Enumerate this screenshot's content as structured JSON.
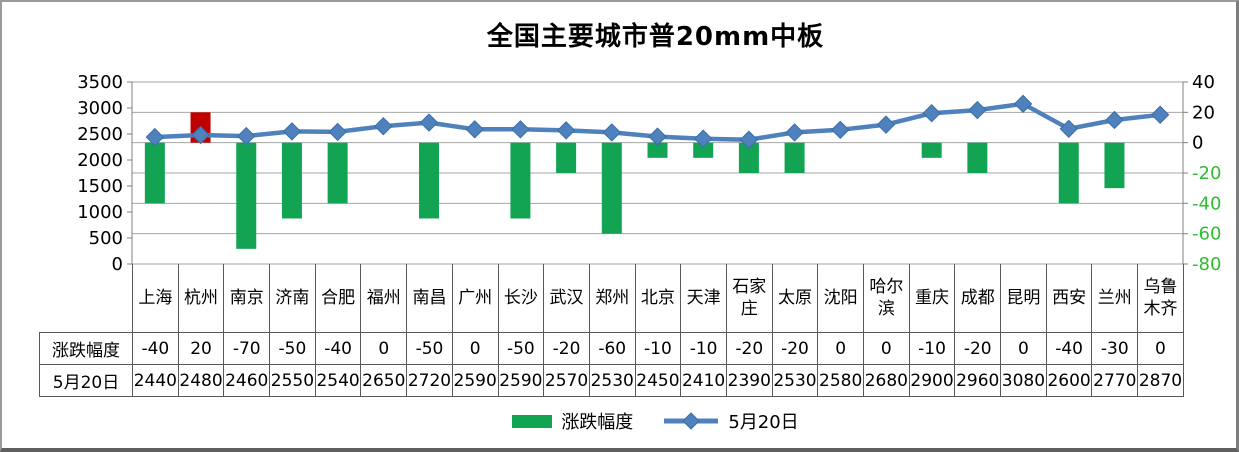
{
  "chart_data": {
    "type": "combo",
    "title": "全国主要城市普20mm中板",
    "categories": [
      "上海",
      "杭州",
      "南京",
      "济南",
      "合肥",
      "福州",
      "南昌",
      "广州",
      "长沙",
      "武汉",
      "郑州",
      "北京",
      "天津",
      "石家庄",
      "太原",
      "沈阳",
      "哈尔滨",
      "重庆",
      "成都",
      "昆明",
      "西安",
      "兰州",
      "乌鲁木齐"
    ],
    "series": [
      {
        "name": "涨跌幅度",
        "type": "bar",
        "axis": "right",
        "color": "#13A453",
        "positive_color": "#C00000",
        "values": [
          -40,
          20,
          -70,
          -50,
          -40,
          0,
          -50,
          0,
          -50,
          -20,
          -60,
          -10,
          -10,
          -20,
          -20,
          0,
          0,
          -10,
          -20,
          0,
          -40,
          -30,
          0
        ]
      },
      {
        "name": "5月20日",
        "type": "line",
        "axis": "left",
        "color": "#4F81BD",
        "marker": "diamond",
        "marker_edge": "#3A6EA5",
        "values": [
          2440,
          2480,
          2460,
          2550,
          2540,
          2650,
          2720,
          2590,
          2590,
          2570,
          2530,
          2450,
          2410,
          2390,
          2530,
          2580,
          2680,
          2900,
          2960,
          3080,
          2600,
          2770,
          2870
        ]
      }
    ],
    "left_axis": {
      "min": 0,
      "max": 3500,
      "ticks": [
        3500,
        3000,
        2500,
        2000,
        1500,
        1000,
        500,
        0
      ]
    },
    "right_axis": {
      "min": -80,
      "max": 40,
      "ticks": [
        40,
        20,
        0,
        -20,
        -40,
        -60,
        -80
      ],
      "negative_tick_color": "#2FBE2F"
    },
    "legend": {
      "position": "bottom",
      "items": [
        "涨跌幅度",
        "5月20日"
      ]
    },
    "colors": {
      "grid": "#A6A6A6",
      "axis": "#808080",
      "table_border": "#595959",
      "text": "#000000"
    },
    "grid": true,
    "data_table_shown": true
  }
}
